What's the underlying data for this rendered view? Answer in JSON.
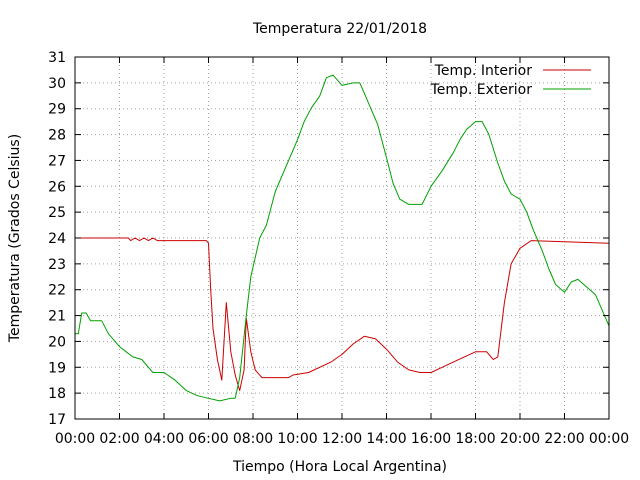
{
  "chart_data": {
    "type": "line",
    "title": "Temperatura 22/01/2018",
    "xlabel": "Tiempo (Hora Local Argentina)",
    "ylabel": "Temperatura (Grados Celsius)",
    "xlim": [
      0,
      24
    ],
    "ylim": [
      17,
      31
    ],
    "grid": true,
    "legend_position": "top-right",
    "x_ticks": [
      {
        "value": 0,
        "label": "00:00"
      },
      {
        "value": 2,
        "label": "02:00"
      },
      {
        "value": 4,
        "label": "04:00"
      },
      {
        "value": 6,
        "label": "06:00"
      },
      {
        "value": 8,
        "label": "08:00"
      },
      {
        "value": 10,
        "label": "10:00"
      },
      {
        "value": 12,
        "label": "12:00"
      },
      {
        "value": 14,
        "label": "14:00"
      },
      {
        "value": 16,
        "label": "16:00"
      },
      {
        "value": 18,
        "label": "18:00"
      },
      {
        "value": 20,
        "label": "20:00"
      },
      {
        "value": 22,
        "label": "22:00"
      },
      {
        "value": 24,
        "label": "00:00"
      }
    ],
    "y_ticks": [
      17,
      18,
      19,
      20,
      21,
      22,
      23,
      24,
      25,
      26,
      27,
      28,
      29,
      30,
      31
    ],
    "series": [
      {
        "name": "Temp. Interior",
        "color": "#cc0000",
        "points": [
          [
            0,
            24.0
          ],
          [
            2.4,
            24.0
          ],
          [
            2.5,
            23.9
          ],
          [
            2.7,
            24.0
          ],
          [
            2.9,
            23.9
          ],
          [
            3.1,
            24.0
          ],
          [
            3.3,
            23.9
          ],
          [
            3.5,
            24.0
          ],
          [
            3.7,
            23.9
          ],
          [
            5.9,
            23.9
          ],
          [
            6.0,
            23.8
          ],
          [
            6.1,
            22.0
          ],
          [
            6.2,
            20.5
          ],
          [
            6.4,
            19.3
          ],
          [
            6.6,
            18.5
          ],
          [
            6.8,
            21.5
          ],
          [
            7.0,
            19.6
          ],
          [
            7.2,
            18.7
          ],
          [
            7.4,
            18.1
          ],
          [
            7.6,
            18.9
          ],
          [
            7.7,
            20.9
          ],
          [
            7.9,
            19.6
          ],
          [
            8.1,
            18.9
          ],
          [
            8.4,
            18.6
          ],
          [
            9.6,
            18.6
          ],
          [
            9.8,
            18.7
          ],
          [
            10.5,
            18.8
          ],
          [
            11.5,
            19.2
          ],
          [
            12.0,
            19.5
          ],
          [
            12.5,
            19.9
          ],
          [
            13.0,
            20.2
          ],
          [
            13.5,
            20.1
          ],
          [
            14.0,
            19.7
          ],
          [
            14.5,
            19.2
          ],
          [
            15.0,
            18.9
          ],
          [
            15.5,
            18.8
          ],
          [
            16.0,
            18.8
          ],
          [
            16.5,
            19.0
          ],
          [
            17.0,
            19.2
          ],
          [
            17.5,
            19.4
          ],
          [
            18.0,
            19.6
          ],
          [
            18.5,
            19.6
          ],
          [
            18.8,
            19.3
          ],
          [
            19.0,
            19.4
          ],
          [
            19.3,
            21.5
          ],
          [
            19.6,
            23.0
          ],
          [
            20.0,
            23.6
          ],
          [
            20.5,
            23.9
          ],
          [
            24.0,
            23.8
          ]
        ]
      },
      {
        "name": "Temp. Exterior",
        "color": "#00a000",
        "points": [
          [
            0,
            20.3
          ],
          [
            0.15,
            20.3
          ],
          [
            0.3,
            21.1
          ],
          [
            0.5,
            21.1
          ],
          [
            0.7,
            20.8
          ],
          [
            1.2,
            20.8
          ],
          [
            1.5,
            20.3
          ],
          [
            2.0,
            19.8
          ],
          [
            2.3,
            19.6
          ],
          [
            2.6,
            19.4
          ],
          [
            3.0,
            19.3
          ],
          [
            3.3,
            19.0
          ],
          [
            3.5,
            18.8
          ],
          [
            4.0,
            18.8
          ],
          [
            4.5,
            18.5
          ],
          [
            5.0,
            18.1
          ],
          [
            5.5,
            17.9
          ],
          [
            6.0,
            17.8
          ],
          [
            6.5,
            17.7
          ],
          [
            7.0,
            17.8
          ],
          [
            7.2,
            17.8
          ],
          [
            7.4,
            18.6
          ],
          [
            7.7,
            21.0
          ],
          [
            7.9,
            22.5
          ],
          [
            8.3,
            24.0
          ],
          [
            8.6,
            24.5
          ],
          [
            9.0,
            25.8
          ],
          [
            9.5,
            26.8
          ],
          [
            10.0,
            27.8
          ],
          [
            10.3,
            28.5
          ],
          [
            10.6,
            29.0
          ],
          [
            11.0,
            29.5
          ],
          [
            11.3,
            30.2
          ],
          [
            11.6,
            30.3
          ],
          [
            12.0,
            29.9
          ],
          [
            12.5,
            30.0
          ],
          [
            12.8,
            30.0
          ],
          [
            13.0,
            29.6
          ],
          [
            13.3,
            29.0
          ],
          [
            13.6,
            28.4
          ],
          [
            14.0,
            27.1
          ],
          [
            14.3,
            26.1
          ],
          [
            14.6,
            25.5
          ],
          [
            15.0,
            25.3
          ],
          [
            15.6,
            25.3
          ],
          [
            16.0,
            26.0
          ],
          [
            16.5,
            26.6
          ],
          [
            17.0,
            27.3
          ],
          [
            17.3,
            27.8
          ],
          [
            17.6,
            28.2
          ],
          [
            18.0,
            28.5
          ],
          [
            18.3,
            28.5
          ],
          [
            18.6,
            28.0
          ],
          [
            19.0,
            26.9
          ],
          [
            19.3,
            26.2
          ],
          [
            19.6,
            25.7
          ],
          [
            20.0,
            25.5
          ],
          [
            20.3,
            25.0
          ],
          [
            20.6,
            24.3
          ],
          [
            21.0,
            23.5
          ],
          [
            21.3,
            22.8
          ],
          [
            21.6,
            22.2
          ],
          [
            22.0,
            21.9
          ],
          [
            22.3,
            22.3
          ],
          [
            22.6,
            22.4
          ],
          [
            23.0,
            22.1
          ],
          [
            23.4,
            21.8
          ],
          [
            23.7,
            21.2
          ],
          [
            24.0,
            20.6
          ]
        ]
      }
    ]
  }
}
